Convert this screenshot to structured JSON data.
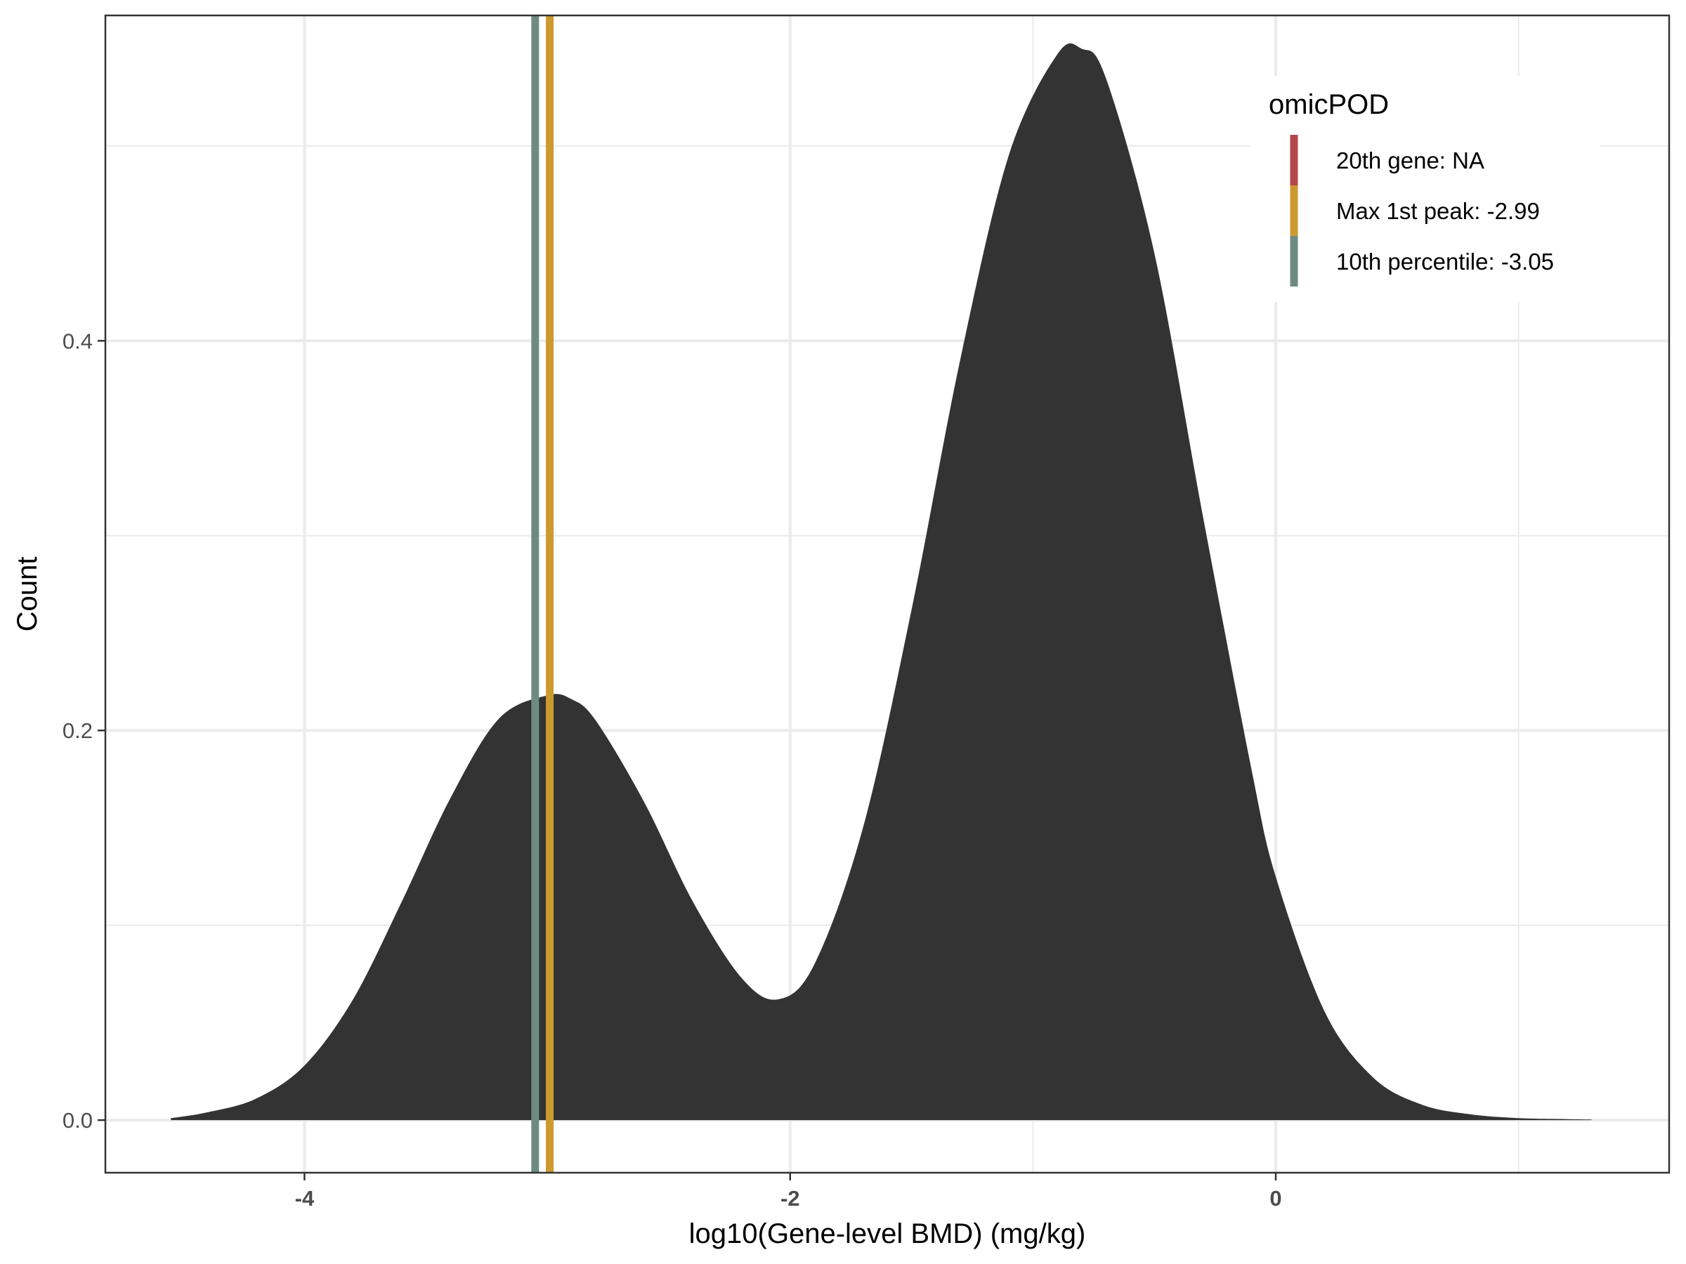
{
  "chart_data": {
    "type": "area",
    "xlabel": "log10(Gene-level BMD) (mg/kg)",
    "ylabel": "Count",
    "xlim": [
      -4.82,
      1.62
    ],
    "ylim": [
      -0.027,
      0.567
    ],
    "x_ticks": [
      -4,
      -2,
      0
    ],
    "x_tick_labels": [
      "-4",
      "-2",
      "0"
    ],
    "x_minor_ticks": [
      -3,
      -1,
      1
    ],
    "y_ticks": [
      0.0,
      0.2,
      0.4
    ],
    "y_tick_labels": [
      "0.0",
      "0.2",
      "0.4"
    ],
    "y_minor_ticks": [
      0.1,
      0.3,
      0.5
    ],
    "grid": true,
    "density": {
      "x": [
        -4.55,
        -4.4,
        -4.2,
        -4.0,
        -3.8,
        -3.6,
        -3.4,
        -3.2,
        -3.0,
        -2.9,
        -2.8,
        -2.6,
        -2.4,
        -2.2,
        -2.05,
        -1.9,
        -1.7,
        -1.5,
        -1.3,
        -1.1,
        -0.9,
        -0.8,
        -0.7,
        -0.5,
        -0.3,
        -0.1,
        0.0,
        0.2,
        0.4,
        0.6,
        0.8,
        1.0,
        1.2,
        1.3
      ],
      "y": [
        0.001,
        0.004,
        0.011,
        0.028,
        0.062,
        0.112,
        0.165,
        0.206,
        0.218,
        0.216,
        0.205,
        0.163,
        0.112,
        0.073,
        0.062,
        0.08,
        0.15,
        0.262,
        0.39,
        0.495,
        0.547,
        0.55,
        0.535,
        0.445,
        0.31,
        0.18,
        0.125,
        0.056,
        0.022,
        0.008,
        0.003,
        0.001,
        0.0005,
        0.0003
      ],
      "fill_color": "#333333"
    },
    "vlines": [
      {
        "label": "20th gene: NA",
        "x": null,
        "color": "#b5464b"
      },
      {
        "label": "Max 1st peak: -2.99",
        "x": -2.99,
        "color": "#cc9a2e"
      },
      {
        "label": "10th percentile: -3.05",
        "x": -3.05,
        "color": "#6e8b82"
      }
    ],
    "legend": {
      "title": "omicPOD",
      "placement": "top-right"
    }
  }
}
